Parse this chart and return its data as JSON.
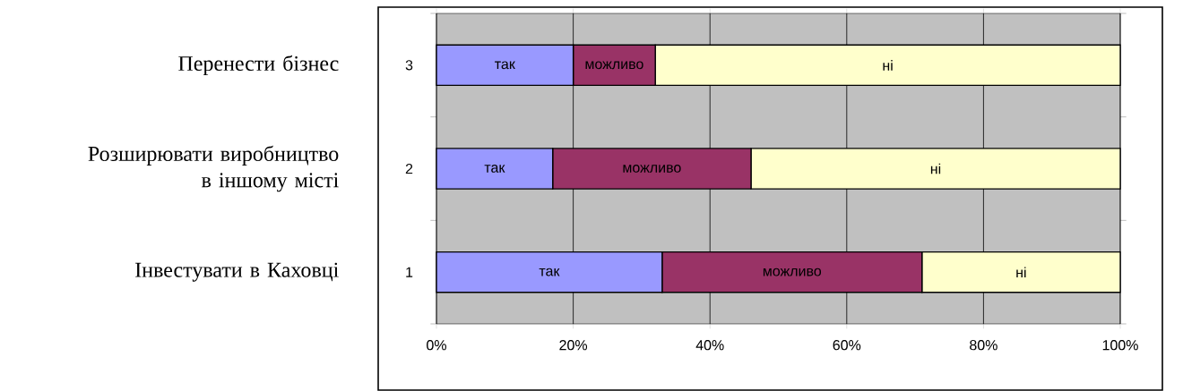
{
  "chart_data": {
    "type": "bar",
    "orientation": "horizontal",
    "stacked": true,
    "categories": [
      "3",
      "2",
      "1"
    ],
    "series": [
      {
        "name": "так",
        "color": "#9999ff",
        "values": [
          20,
          17,
          33
        ]
      },
      {
        "name": "можливо",
        "color": "#993366",
        "values": [
          12,
          29,
          38
        ]
      },
      {
        "name": "ні",
        "color": "#ffffcc",
        "values": [
          68,
          54,
          29
        ]
      }
    ],
    "xlim": [
      0,
      100
    ],
    "xticks": [
      {
        "value": 0,
        "label": "0%"
      },
      {
        "value": 20,
        "label": "20%"
      },
      {
        "value": 40,
        "label": "40%"
      },
      {
        "value": 60,
        "label": "60%"
      },
      {
        "value": 80,
        "label": "80%"
      },
      {
        "value": 100,
        "label": "100%"
      }
    ],
    "grid": "x",
    "annotations": [
      "Перенести бізнес",
      "Розширювати виробництво в іншому місті",
      "Інвестувати в Каховці"
    ]
  }
}
